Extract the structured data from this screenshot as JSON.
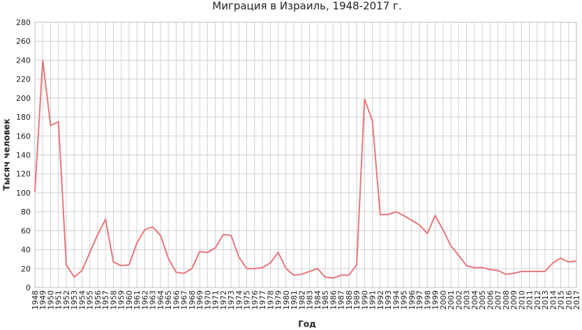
{
  "chart_data": {
    "type": "line",
    "title": "Миграция в Израиль, 1948-2017 г.",
    "x_label": "Год",
    "y_label": "Тысяч человек",
    "x": [
      1948,
      1949,
      1950,
      1951,
      1952,
      1953,
      1954,
      1955,
      1956,
      1957,
      1958,
      1959,
      1960,
      1961,
      1962,
      1963,
      1964,
      1965,
      1966,
      1967,
      1968,
      1969,
      1970,
      1971,
      1972,
      1973,
      1974,
      1975,
      1976,
      1977,
      1978,
      1979,
      1980,
      1981,
      1982,
      1983,
      1984,
      1985,
      1986,
      1987,
      1988,
      1989,
      1990,
      1991,
      1992,
      1993,
      1994,
      1995,
      1996,
      1997,
      1998,
      1999,
      2000,
      2001,
      2002,
      2003,
      2004,
      2005,
      2006,
      2007,
      2008,
      2009,
      2010,
      2011,
      2012,
      2013,
      2014,
      2015,
      2016,
      2017
    ],
    "values": [
      101,
      240,
      171,
      175,
      24,
      11,
      18,
      37,
      56,
      72,
      27,
      23,
      24,
      47,
      61,
      64,
      55,
      31,
      16,
      15,
      20,
      38,
      37,
      42,
      56,
      55,
      32,
      20,
      20,
      21,
      26,
      37,
      20,
      13,
      14,
      17,
      20,
      11,
      10,
      13,
      13,
      24,
      199,
      176,
      77,
      77,
      80,
      76,
      71,
      66,
      57,
      76,
      61,
      44,
      34,
      23,
      21,
      21,
      19,
      18,
      14,
      15,
      17,
      17,
      17,
      17,
      26,
      31,
      27,
      28
    ],
    "color": "#e8777a",
    "xlim": [
      1948,
      2017
    ],
    "ylim": [
      0,
      280
    ],
    "yticks": [
      0,
      20,
      40,
      60,
      80,
      100,
      120,
      140,
      160,
      180,
      200,
      220,
      240,
      260,
      280
    ],
    "grid": true
  }
}
